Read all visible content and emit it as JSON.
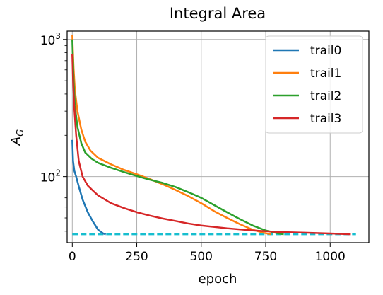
{
  "chart_data": {
    "type": "line",
    "title": "Integral Area",
    "xlabel": "epoch",
    "ylabel_main": "A",
    "ylabel_sub": "G",
    "y_scale": "log",
    "xlim": [
      -20,
      1150
    ],
    "ylim": [
      33,
      1150
    ],
    "x_ticks": [
      0,
      250,
      500,
      750,
      1000
    ],
    "x_tick_labels": [
      "0",
      "250",
      "500",
      "750",
      "1000"
    ],
    "y_major_ticks": [
      {
        "value": 100,
        "base": "10",
        "exp": "2"
      },
      {
        "value": 1000,
        "base": "10",
        "exp": "3"
      }
    ],
    "grid": true,
    "legend_position": "top-right",
    "series": [
      {
        "name": "trail0",
        "color": "#1f77b4",
        "points": [
          [
            0,
            185
          ],
          [
            3,
            130
          ],
          [
            8,
            110
          ],
          [
            15,
            100
          ],
          [
            25,
            85
          ],
          [
            40,
            68
          ],
          [
            60,
            55
          ],
          [
            80,
            47
          ],
          [
            100,
            41
          ],
          [
            120,
            38.5
          ],
          [
            130,
            38
          ]
        ]
      },
      {
        "name": "trail1",
        "color": "#ff7f0e",
        "points": [
          [
            0,
            1080
          ],
          [
            5,
            620
          ],
          [
            10,
            430
          ],
          [
            20,
            300
          ],
          [
            35,
            220
          ],
          [
            50,
            180
          ],
          [
            70,
            155
          ],
          [
            100,
            137
          ],
          [
            150,
            123
          ],
          [
            200,
            112
          ],
          [
            250,
            104
          ],
          [
            300,
            96
          ],
          [
            350,
            88
          ],
          [
            400,
            80
          ],
          [
            450,
            72
          ],
          [
            500,
            64
          ],
          [
            550,
            56
          ],
          [
            600,
            50
          ],
          [
            650,
            45
          ],
          [
            700,
            41
          ],
          [
            740,
            39
          ],
          [
            770,
            38
          ]
        ]
      },
      {
        "name": "trail2",
        "color": "#2ca02c",
        "points": [
          [
            0,
            1000
          ],
          [
            5,
            500
          ],
          [
            10,
            330
          ],
          [
            20,
            230
          ],
          [
            35,
            175
          ],
          [
            50,
            150
          ],
          [
            75,
            135
          ],
          [
            100,
            126
          ],
          [
            150,
            116
          ],
          [
            200,
            108
          ],
          [
            250,
            101
          ],
          [
            300,
            95
          ],
          [
            350,
            90
          ],
          [
            400,
            84
          ],
          [
            450,
            77
          ],
          [
            500,
            70
          ],
          [
            550,
            62
          ],
          [
            600,
            55
          ],
          [
            650,
            49
          ],
          [
            700,
            44
          ],
          [
            750,
            40.5
          ],
          [
            800,
            38.5
          ],
          [
            820,
            38
          ]
        ]
      },
      {
        "name": "trail3",
        "color": "#d62728",
        "points": [
          [
            0,
            780
          ],
          [
            3,
            500
          ],
          [
            8,
            310
          ],
          [
            15,
            200
          ],
          [
            25,
            130
          ],
          [
            40,
            100
          ],
          [
            60,
            86
          ],
          [
            80,
            79
          ],
          [
            100,
            73
          ],
          [
            150,
            64
          ],
          [
            200,
            59
          ],
          [
            250,
            55
          ],
          [
            300,
            52
          ],
          [
            350,
            49.5
          ],
          [
            400,
            47.5
          ],
          [
            450,
            45.5
          ],
          [
            500,
            44
          ],
          [
            600,
            42
          ],
          [
            700,
            40.5
          ],
          [
            800,
            39.5
          ],
          [
            900,
            39
          ],
          [
            1000,
            38.5
          ],
          [
            1080,
            38
          ]
        ]
      }
    ],
    "reference_line": {
      "color": "#17becf",
      "style": "dashed",
      "y": 38,
      "x_range": [
        0,
        1100
      ]
    }
  }
}
